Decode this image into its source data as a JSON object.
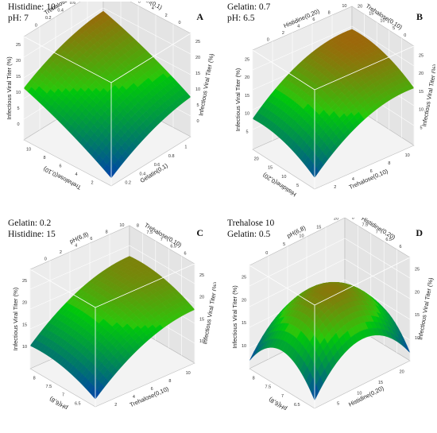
{
  "chart_data": [
    {
      "type": "surface",
      "panel": "A",
      "fixed": [
        "Histidine: 10",
        "pH: 7"
      ],
      "x_label": "Gelatin(0,1)",
      "x_ticks": [
        "0.2",
        "0.4",
        "0.6",
        "0.8",
        "1"
      ],
      "y_label": "Trehalose(0,10)",
      "y_ticks": [
        "2",
        "4",
        "6",
        "8",
        "10"
      ],
      "z_label": "Infectious Viral Titer (%)",
      "z_ticks": [
        "0",
        "5",
        "10",
        "15",
        "20",
        "25"
      ],
      "top_x_ticks": [
        "0",
        "0.2",
        "0.4",
        "0.6",
        "0.8",
        "1"
      ],
      "top_y_ticks": [
        "0",
        "2",
        "4",
        "6",
        "8",
        "10"
      ],
      "z_range": [
        0,
        26
      ]
    },
    {
      "type": "surface",
      "panel": "B",
      "fixed": [
        "Gelatin: 0.7",
        "pH: 6.5"
      ],
      "x_label": "Trehalose(0,10)",
      "x_ticks": [
        "2",
        "4",
        "6",
        "8",
        "10"
      ],
      "y_label": "Histidine(0,20)",
      "y_ticks": [
        "5",
        "10",
        "15",
        "20"
      ],
      "z_label": "Infectious Viral Titer (%)",
      "z_ticks": [
        "5",
        "10",
        "15",
        "20",
        "25"
      ],
      "top_x_ticks": [
        "0",
        "2",
        "4",
        "6",
        "8",
        "10"
      ],
      "top_y_ticks": [
        "0",
        "5",
        "10",
        "15",
        "20"
      ],
      "z_range": [
        0,
        26
      ]
    },
    {
      "type": "surface",
      "panel": "C",
      "fixed": [
        "Gelatin: 0.2",
        "Histidine: 15"
      ],
      "x_label": "Trehalose(0,10)",
      "x_ticks": [
        "2",
        "4",
        "6",
        "8",
        "10"
      ],
      "y_label": "pH(6,8)",
      "y_ticks": [
        "6.5",
        "7",
        "7.5",
        "8"
      ],
      "z_label": "Infectious Viral Titer (%)",
      "z_ticks": [
        "10",
        "15",
        "20",
        "25"
      ],
      "top_x_ticks": [
        "0",
        "2",
        "4",
        "6",
        "8",
        "10"
      ],
      "top_y_ticks": [
        "6",
        "6.5",
        "7",
        "7.5",
        "8"
      ],
      "z_range": [
        8,
        26
      ]
    },
    {
      "type": "surface",
      "panel": "D",
      "fixed": [
        "Trehalose  10",
        "Gelatin: 0.5"
      ],
      "x_label": "Histidine(0,20)",
      "x_ticks": [
        "5",
        "10",
        "15",
        "20"
      ],
      "y_label": "pH(6,8)",
      "y_ticks": [
        "6.5",
        "7",
        "7.5",
        "8"
      ],
      "z_label": "Infectious Viral Titer (%)",
      "z_ticks": [
        "10",
        "15",
        "20",
        "25"
      ],
      "top_x_ticks": [
        "0",
        "5",
        "10",
        "15",
        "20"
      ],
      "top_y_ticks": [
        "6",
        "6.5",
        "7",
        "7.5",
        "8"
      ],
      "z_range": [
        8,
        26
      ]
    }
  ]
}
